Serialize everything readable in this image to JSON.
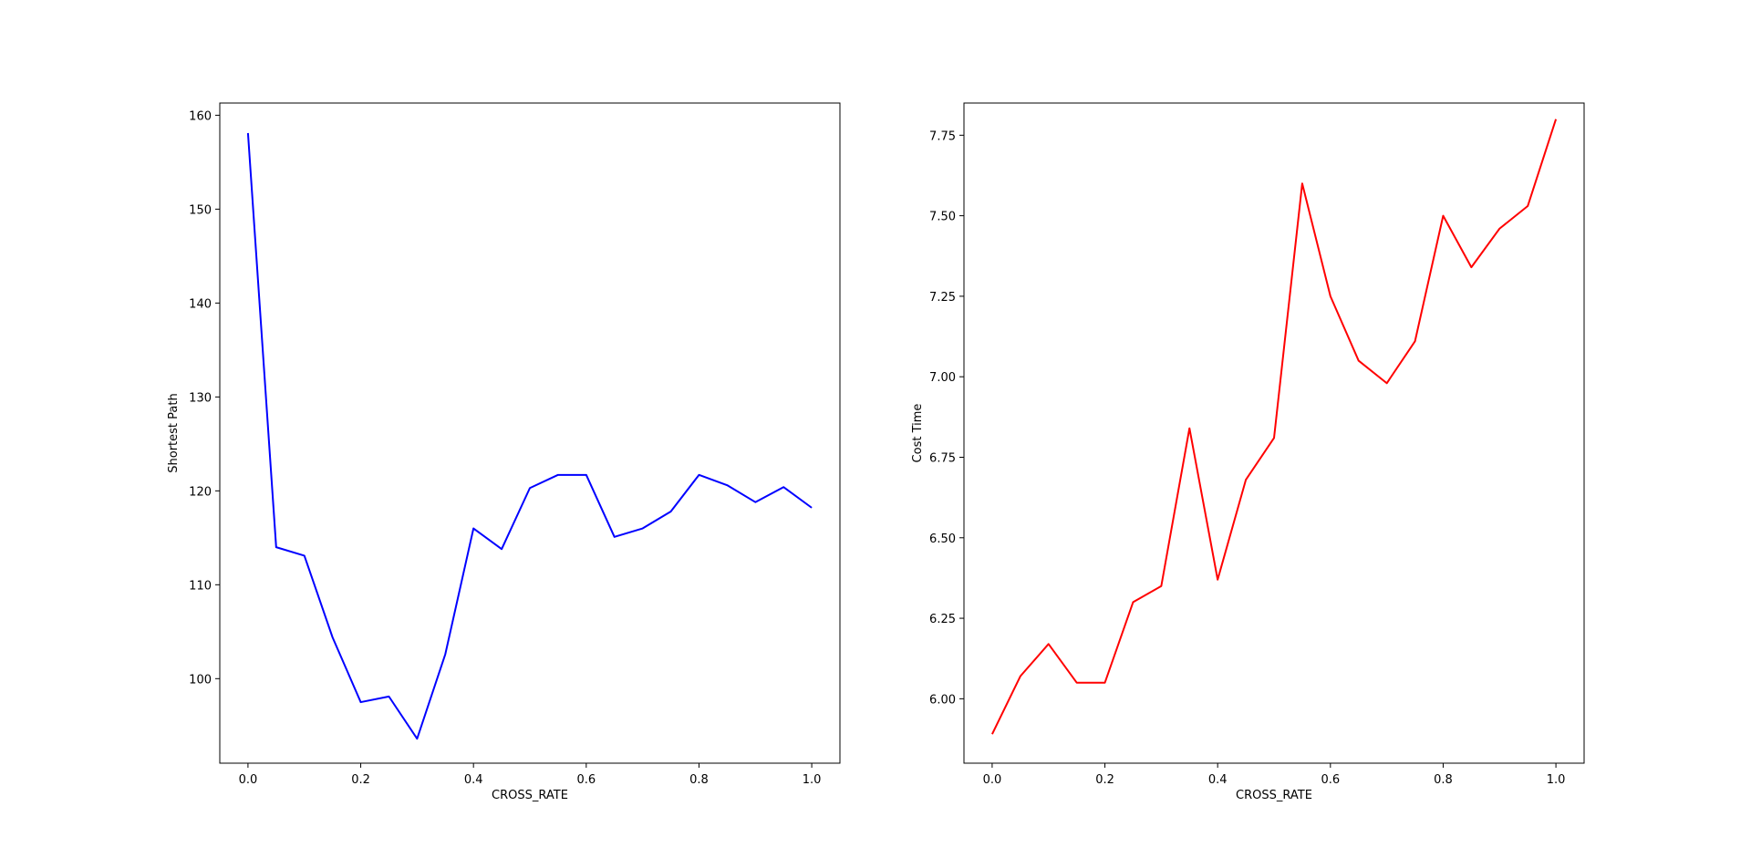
{
  "chart_data": [
    {
      "type": "line",
      "xlabel": "CROSS_RATE",
      "ylabel": "Shortest Path",
      "xlim": [
        -0.05,
        1.05
      ],
      "ylim": [
        91,
        161.3
      ],
      "xticks": [
        0.0,
        0.2,
        0.4,
        0.6,
        0.8,
        1.0
      ],
      "xtick_labels": [
        "0.0",
        "0.2",
        "0.4",
        "0.6",
        "0.8",
        "1.0"
      ],
      "yticks": [
        100,
        110,
        120,
        130,
        140,
        150,
        160
      ],
      "ytick_labels": [
        "100",
        "110",
        "120",
        "130",
        "140",
        "150",
        "160"
      ],
      "grid": false,
      "series": [
        {
          "color": "#0000ff",
          "x": [
            0.0,
            0.05,
            0.1,
            0.15,
            0.2,
            0.25,
            0.3,
            0.35,
            0.4,
            0.45,
            0.5,
            0.55,
            0.6,
            0.65,
            0.7,
            0.75,
            0.8,
            0.85,
            0.9,
            0.95,
            1.0
          ],
          "values": [
            158.1,
            114.0,
            113.1,
            104.4,
            97.5,
            98.1,
            93.6,
            102.6,
            116.0,
            113.8,
            120.3,
            121.7,
            121.7,
            115.1,
            116.0,
            117.8,
            121.7,
            120.6,
            118.8,
            120.4,
            118.2
          ]
        }
      ]
    },
    {
      "type": "line",
      "xlabel": "CROSS_RATE",
      "ylabel": "Cost Time",
      "xlim": [
        -0.05,
        1.05
      ],
      "ylim": [
        5.8,
        7.85
      ],
      "xticks": [
        0.0,
        0.2,
        0.4,
        0.6,
        0.8,
        1.0
      ],
      "xtick_labels": [
        "0.0",
        "0.2",
        "0.4",
        "0.6",
        "0.8",
        "1.0"
      ],
      "yticks": [
        6.0,
        6.25,
        6.5,
        6.75,
        7.0,
        7.25,
        7.5,
        7.75
      ],
      "ytick_labels": [
        "6.00",
        "6.25",
        "6.50",
        "6.75",
        "7.00",
        "7.25",
        "7.50",
        "7.75"
      ],
      "grid": false,
      "series": [
        {
          "color": "#ff0000",
          "x": [
            0.0,
            0.05,
            0.1,
            0.15,
            0.2,
            0.25,
            0.3,
            0.35,
            0.4,
            0.45,
            0.5,
            0.55,
            0.6,
            0.65,
            0.7,
            0.75,
            0.8,
            0.85,
            0.9,
            0.95,
            1.0
          ],
          "values": [
            5.89,
            6.07,
            6.17,
            6.05,
            6.05,
            6.3,
            6.35,
            6.84,
            6.37,
            6.68,
            6.81,
            7.6,
            7.25,
            7.05,
            6.98,
            7.11,
            7.5,
            7.34,
            7.46,
            7.53,
            7.8
          ]
        }
      ]
    }
  ]
}
